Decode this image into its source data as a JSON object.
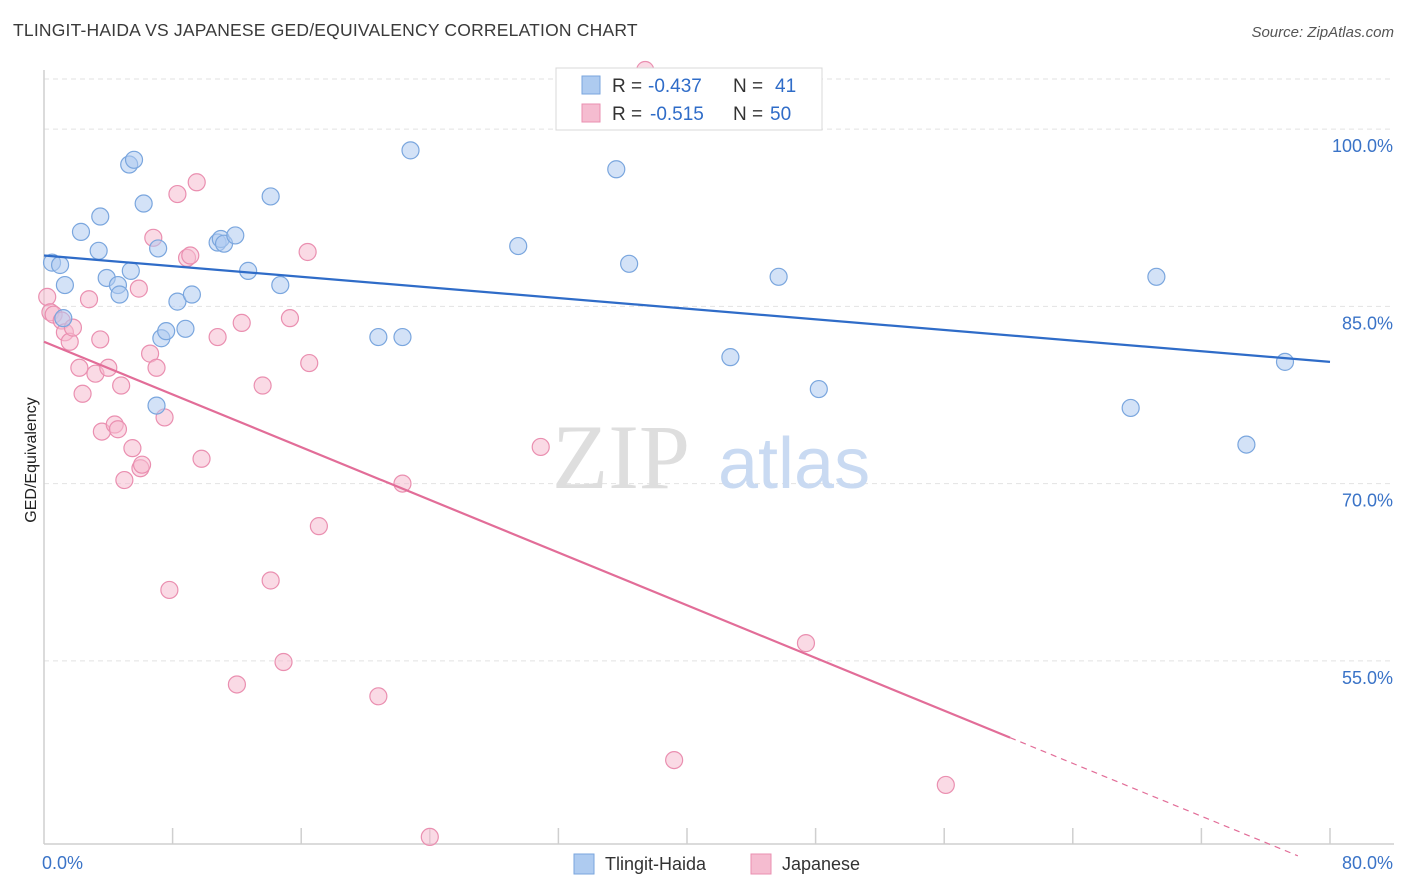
{
  "title": "TLINGIT-HAIDA VS JAPANESE GED/EQUIVALENCY CORRELATION CHART",
  "source": "Source: ZipAtlas.com",
  "watermark": {
    "zip": "ZIP",
    "atlas": "atlas"
  },
  "colors": {
    "blue_fill": "#aecbf0",
    "blue_stroke": "#7aa6de",
    "blue_line": "#2f6cc8",
    "pink_fill": "#f5bcd0",
    "pink_stroke": "#ea8fb0",
    "pink_line": "#e26d98",
    "grid": "#e2e2e2",
    "axis_label": "#3a73c7"
  },
  "stats": [
    {
      "r_label": "R =",
      "r_value": "-0.437",
      "n_label": "N =",
      "n_value": "41"
    },
    {
      "r_label": "R =",
      "r_value": "-0.515",
      "n_label": "N =",
      "n_value": "50"
    }
  ],
  "chart_data": {
    "type": "scatter",
    "title": "TLINGIT-HAIDA VS JAPANESE GED/EQUIVALENCY CORRELATION CHART",
    "xlabel": "",
    "ylabel": "GED/Equivalency",
    "xlim": [
      0,
      80
    ],
    "ylim": [
      39.5,
      105
    ],
    "x_tick_labels": [
      "0.0%",
      "80.0%"
    ],
    "y_ticks": [
      55,
      70,
      85,
      100
    ],
    "y_tick_labels": [
      "55.0%",
      "70.0%",
      "85.0%",
      "100.0%"
    ],
    "legend": [
      "Tlingit-Haida",
      "Japanese"
    ],
    "series": [
      {
        "name": "Tlingit-Haida",
        "points": [
          [
            0.5,
            88.7
          ],
          [
            1.0,
            88.5
          ],
          [
            1.3,
            86.8
          ],
          [
            2.3,
            91.3
          ],
          [
            3.4,
            89.7
          ],
          [
            3.5,
            92.6
          ],
          [
            3.9,
            87.4
          ],
          [
            4.6,
            86.8
          ],
          [
            4.7,
            86.0
          ],
          [
            5.3,
            97.0
          ],
          [
            5.4,
            88.0
          ],
          [
            5.6,
            97.4
          ],
          [
            6.2,
            93.7
          ],
          [
            7.1,
            89.9
          ],
          [
            7.3,
            82.3
          ],
          [
            7.6,
            82.9
          ],
          [
            8.3,
            85.4
          ],
          [
            8.8,
            83.1
          ],
          [
            9.2,
            86.0
          ],
          [
            10.8,
            90.4
          ],
          [
            11.0,
            90.7
          ],
          [
            11.2,
            90.3
          ],
          [
            11.9,
            91.0
          ],
          [
            12.7,
            88.0
          ],
          [
            14.1,
            94.3
          ],
          [
            14.7,
            86.8
          ],
          [
            20.8,
            82.4
          ],
          [
            22.3,
            82.4
          ],
          [
            22.8,
            98.2
          ],
          [
            29.5,
            90.1
          ],
          [
            35.6,
            96.6
          ],
          [
            36.4,
            88.6
          ],
          [
            42.7,
            80.7
          ],
          [
            45.7,
            87.5
          ],
          [
            48.2,
            78.0
          ],
          [
            67.6,
            76.4
          ],
          [
            69.2,
            87.5
          ],
          [
            74.8,
            73.3
          ],
          [
            77.2,
            80.3
          ],
          [
            1.2,
            84.0
          ],
          [
            7.0,
            76.6
          ]
        ],
        "trend": {
          "x": [
            0,
            80
          ],
          "y": [
            89.3,
            80.3
          ]
        }
      },
      {
        "name": "Japanese",
        "points": [
          [
            0.2,
            85.8
          ],
          [
            0.4,
            84.5
          ],
          [
            0.6,
            84.3
          ],
          [
            1.1,
            83.8
          ],
          [
            1.3,
            82.8
          ],
          [
            1.6,
            82.0
          ],
          [
            1.8,
            83.2
          ],
          [
            2.2,
            79.8
          ],
          [
            2.4,
            77.6
          ],
          [
            2.8,
            85.6
          ],
          [
            3.2,
            79.3
          ],
          [
            3.5,
            82.2
          ],
          [
            3.6,
            74.4
          ],
          [
            4.0,
            79.8
          ],
          [
            4.4,
            75.0
          ],
          [
            4.6,
            74.6
          ],
          [
            4.8,
            78.3
          ],
          [
            5.0,
            70.3
          ],
          [
            5.5,
            73.0
          ],
          [
            5.9,
            86.5
          ],
          [
            6.0,
            71.3
          ],
          [
            6.1,
            71.6
          ],
          [
            6.6,
            81.0
          ],
          [
            6.8,
            90.8
          ],
          [
            7.0,
            79.8
          ],
          [
            7.5,
            75.6
          ],
          [
            7.8,
            61.0
          ],
          [
            8.3,
            94.5
          ],
          [
            8.9,
            89.1
          ],
          [
            9.1,
            89.3
          ],
          [
            9.5,
            95.5
          ],
          [
            9.8,
            72.1
          ],
          [
            10.8,
            82.4
          ],
          [
            12.0,
            53.0
          ],
          [
            12.3,
            83.6
          ],
          [
            13.6,
            78.3
          ],
          [
            14.1,
            61.8
          ],
          [
            14.9,
            54.9
          ],
          [
            15.3,
            84.0
          ],
          [
            16.4,
            89.6
          ],
          [
            16.5,
            80.2
          ],
          [
            17.1,
            66.4
          ],
          [
            20.8,
            52.0
          ],
          [
            22.3,
            70.0
          ],
          [
            24.0,
            40.1
          ],
          [
            30.9,
            73.1
          ],
          [
            37.4,
            105.0
          ],
          [
            39.2,
            46.6
          ],
          [
            47.4,
            56.5
          ],
          [
            56.1,
            44.5
          ]
        ],
        "trend": {
          "x": [
            0,
            60.1
          ],
          "y": [
            82.0,
            48.5
          ]
        },
        "trend_dashed": {
          "x": [
            60.1,
            78
          ],
          "y": [
            48.5,
            38.5
          ]
        }
      }
    ]
  },
  "legend_items": [
    {
      "label": "Tlingit-Haida"
    },
    {
      "label": "Japanese"
    }
  ]
}
